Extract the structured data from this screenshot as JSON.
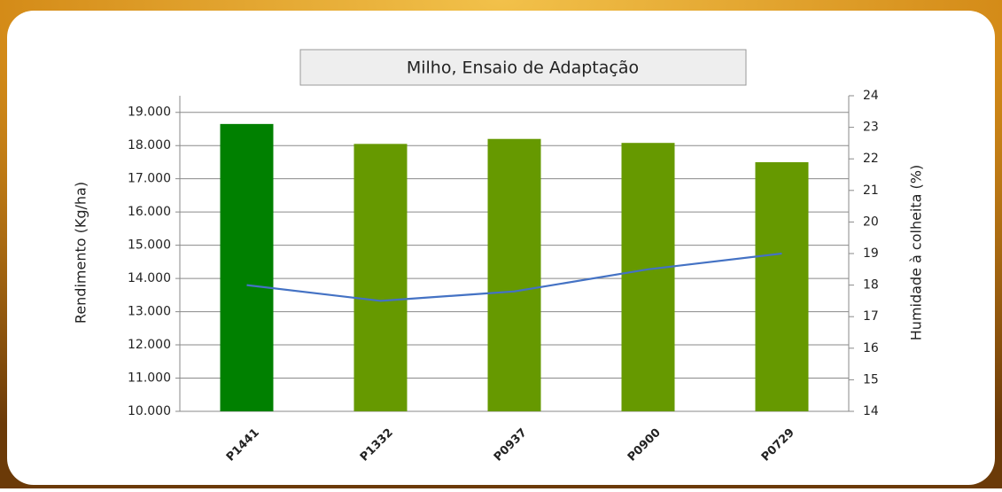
{
  "chart_data": {
    "type": "bar-line",
    "title": "Milho, Ensaio  de Adaptação",
    "y_label": "Rendimento (Kg/ha)",
    "y2_label": "Humidade à colheita (%)",
    "categories": [
      "P1441",
      "P1332",
      "P0937",
      "P0900",
      "P0729"
    ],
    "series": [
      {
        "type": "bar",
        "colors": [
          "#008000",
          "#669900",
          "#669900",
          "#669900",
          "#669900"
        ],
        "values": [
          18650,
          18050,
          18200,
          18080,
          17500
        ]
      },
      {
        "type": "line",
        "axis": "y2",
        "color": "#4472c4",
        "values": [
          18,
          17.5,
          17.8,
          18.5,
          19
        ]
      }
    ],
    "ylim": [
      10000,
      19500
    ],
    "yticks": [
      {
        "value": 10000,
        "label": "10.000"
      },
      {
        "value": 11000,
        "label": "11.000"
      },
      {
        "value": 12000,
        "label": "12.000"
      },
      {
        "value": 13000,
        "label": "13.000"
      },
      {
        "value": 14000,
        "label": "14.000"
      },
      {
        "value": 15000,
        "label": "15.000"
      },
      {
        "value": 16000,
        "label": "16.000"
      },
      {
        "value": 17000,
        "label": "17.000"
      },
      {
        "value": 18000,
        "label": "18.000"
      },
      {
        "value": 19000,
        "label": "19.000"
      }
    ],
    "y2lim": [
      14,
      24
    ],
    "y2ticks": [
      14,
      15,
      16,
      17,
      18,
      19,
      20,
      21,
      22,
      23,
      24
    ],
    "grid": true
  }
}
